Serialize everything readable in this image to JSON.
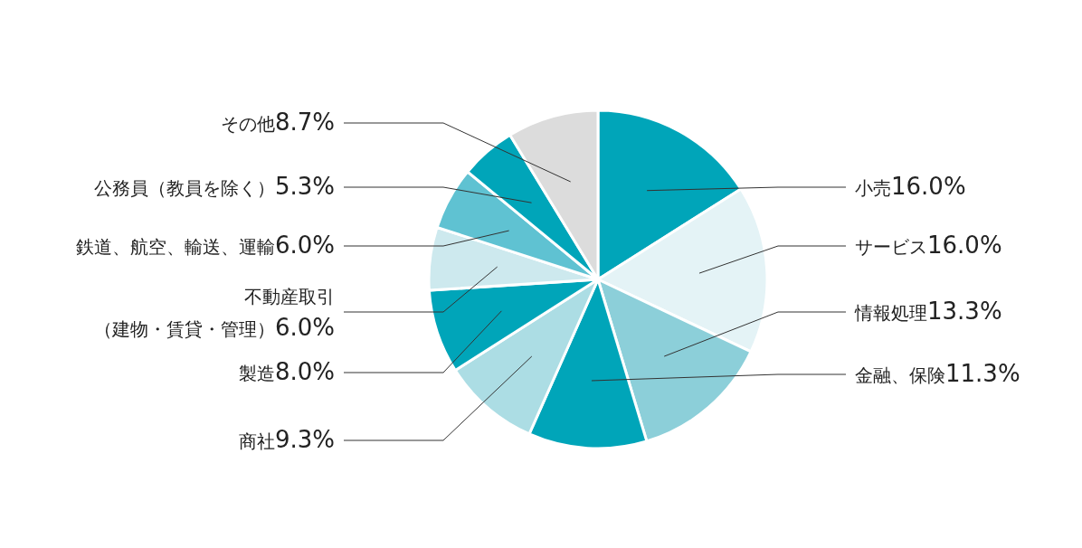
{
  "chart_data": {
    "type": "pie",
    "categories": [
      "小売",
      "サービス",
      "情報処理",
      "金融、保険",
      "商社",
      "製造",
      "不動産取引（建物・賃貸・管理）",
      "鉄道、航空、輸送、運輸",
      "公務員（教員を除く）",
      "その他"
    ],
    "values": [
      16.0,
      16.0,
      13.3,
      11.3,
      9.3,
      8.0,
      6.0,
      6.0,
      5.3,
      8.7
    ],
    "value_labels": [
      "16.0%",
      "16.0%",
      "13.3%",
      "11.3%",
      "9.3%",
      "8.0%",
      "6.0%",
      "6.0%",
      "5.3%",
      "8.7%"
    ],
    "colors": [
      "#00a5b9",
      "#e4f3f6",
      "#8ccfd9",
      "#00a5b9",
      "#acdde4",
      "#00a5b9",
      "#cde9ee",
      "#5fc2d2",
      "#00a5b9",
      "#dcdcdc"
    ]
  }
}
